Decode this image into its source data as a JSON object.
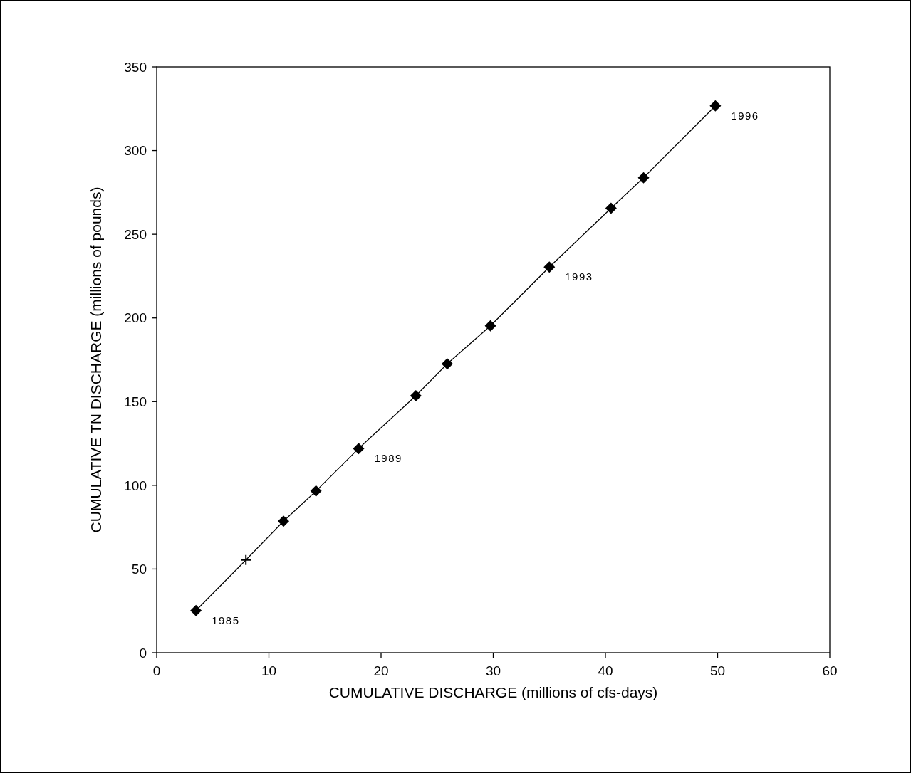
{
  "chart_data": {
    "type": "scatter",
    "xlabel": "CUMULATIVE DISCHARGE (millions of cfs-days)",
    "ylabel": "CUMULATIVE TN DISCHARGE (millions of pounds)",
    "xlim": [
      0,
      60
    ],
    "xticks": [
      0,
      10,
      20,
      30,
      40,
      50,
      60
    ],
    "ylim": [
      0,
      350
    ],
    "yticks": [
      0,
      50,
      100,
      150,
      200,
      250,
      300,
      350
    ],
    "grid": false,
    "series": [
      {
        "type": "line",
        "color": "#000000",
        "marker": "none",
        "line_style": "solid",
        "x": [
          3.5,
          7.95,
          11.3,
          14.2,
          18.0,
          23.1,
          25.9,
          29.75,
          35.0,
          40.5,
          43.4,
          49.8
        ],
        "values": [
          25.2,
          55.4,
          78.6,
          96.6,
          122,
          153.5,
          172.6,
          195.3,
          230.4,
          265.6,
          283.8,
          326.7
        ]
      },
      {
        "color": "#000000",
        "marker": "diamond",
        "x": [
          3.5,
          11.3,
          14.2,
          18.0,
          23.1,
          25.9,
          29.75,
          35.0,
          40.5,
          43.4,
          49.8
        ],
        "values": [
          25.2,
          78.6,
          96.6,
          122,
          153.5,
          172.6,
          195.3,
          230.4,
          265.6,
          283.8,
          326.7
        ]
      },
      {
        "color": "#000000",
        "marker": "cross",
        "x": [
          7.95
        ],
        "values": [
          55.4
        ]
      }
    ],
    "annotations": [
      {
        "text": "1985",
        "x": 3.5,
        "y": 25.2
      },
      {
        "text": "1989",
        "x": 18.0,
        "y": 122
      },
      {
        "text": "1993",
        "x": 35.0,
        "y": 230.4
      },
      {
        "text": "1996",
        "x": 49.8,
        "y": 326.7
      }
    ]
  }
}
